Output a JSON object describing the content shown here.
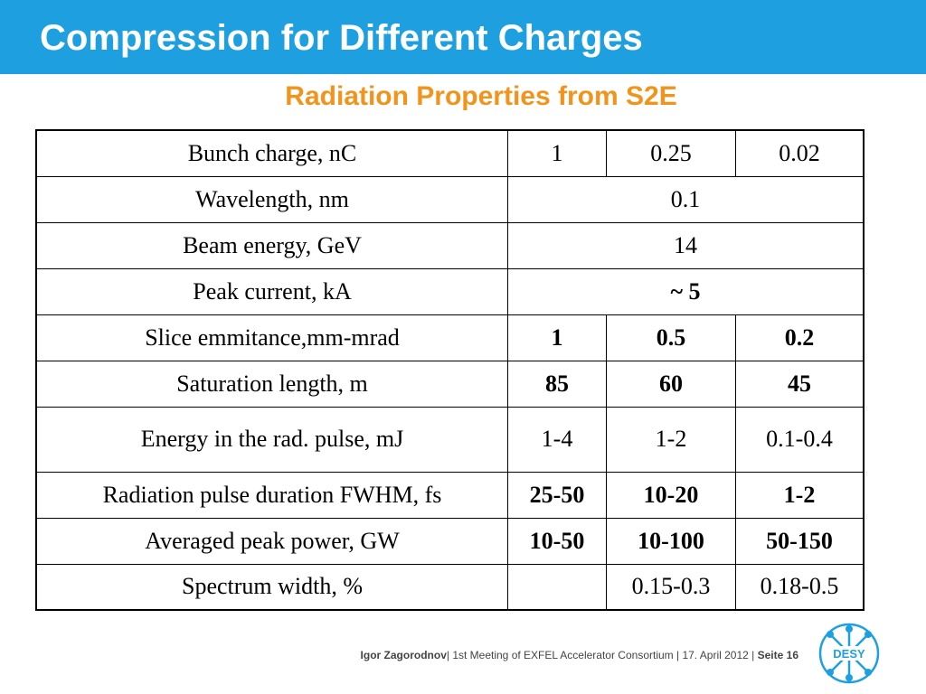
{
  "slide": {
    "title": "Compression for Different Charges",
    "subtitle": "Radiation Properties from S2E",
    "colors": {
      "title_bar": "#1e9fe0",
      "subtitle": "#f2941c"
    }
  },
  "table": {
    "rows": [
      {
        "label": "Bunch charge, nC",
        "cells": [
          "1",
          "0.25",
          "0.02"
        ]
      },
      {
        "label": "Wavelength, nm",
        "merged": "0.1"
      },
      {
        "label": "Beam energy, GeV",
        "merged": "14"
      },
      {
        "label": "Peak current, kA",
        "merged": "~ 5"
      },
      {
        "label": "Slice emmitance,mm-mrad",
        "cells": [
          "1",
          "0.5",
          "0.2"
        ]
      },
      {
        "label": "Saturation length, m",
        "cells": [
          "85",
          "60",
          "45"
        ]
      },
      {
        "label": "Energy in the rad. pulse, mJ",
        "cells": [
          "1-4",
          "1-2",
          "0.1-0.4"
        ]
      },
      {
        "label": "Radiation pulse duration FWHM, fs",
        "cells": [
          "25-50",
          "10-20",
          "1-2"
        ]
      },
      {
        "label": "Averaged peak power, GW",
        "cells": [
          "10-50",
          "10-100",
          "50-150"
        ]
      },
      {
        "label": "Spectrum width, %",
        "cells": [
          "",
          "0.15-0.3",
          "0.18-0.5"
        ]
      }
    ]
  },
  "footer": {
    "author": "Igor Zagorodnov",
    "sep1": "|  1st  Meeting of  EXFEL Accelerator Consortium  |  17. April 2012  |  ",
    "page": "Seite 16"
  },
  "logo": {
    "text": "DESY",
    "icon": "desy-logo-icon"
  }
}
